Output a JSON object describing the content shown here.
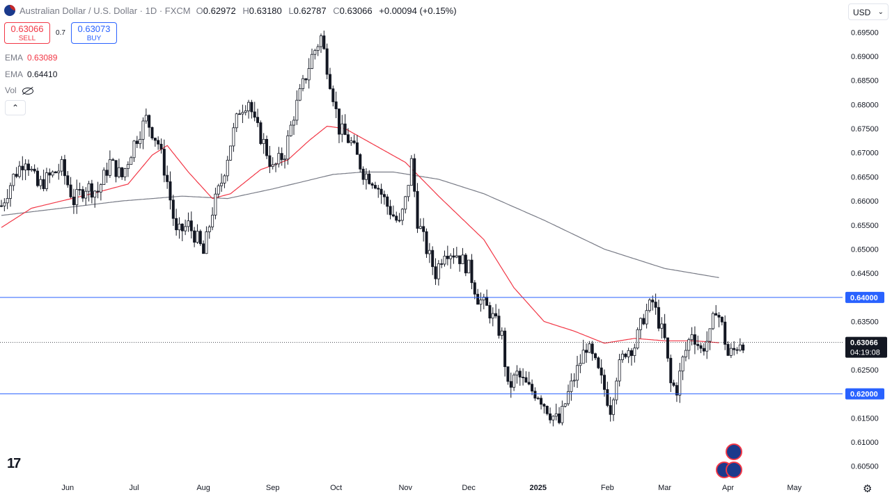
{
  "header": {
    "symbol_title": "Australian Dollar / U.S. Dollar · 1D · FXCM",
    "open_label": "O",
    "open": "0.62972",
    "high_label": "H",
    "high": "0.63180",
    "low_label": "L",
    "low": "0.62787",
    "close_label": "C",
    "close": "0.63066",
    "change": "+0.00094 (+0.15%)"
  },
  "trade": {
    "sell_price": "0.63066",
    "sell_label": "SELL",
    "spread": "0.7",
    "buy_price": "0.63073",
    "buy_label": "BUY"
  },
  "indicators": [
    {
      "name": "EMA",
      "value": "0.63089",
      "color": "#f23645"
    },
    {
      "name": "EMA",
      "value": "0.64410",
      "color": "#787b86"
    },
    {
      "name": "Vol"
    }
  ],
  "currency": "USD",
  "collapse_icon": "chevron-up-icon",
  "colors": {
    "up": "#ffffff",
    "down": "#131722",
    "ema_fast": "#f23645",
    "ema_slow": "#787b86",
    "hline": "#2962ff"
  },
  "chart_data": {
    "type": "candlestick",
    "title": "Australian Dollar / U.S. Dollar · 1D · FXCM",
    "ylim": [
      0.6025,
      0.6985
    ],
    "y_ticks": [
      "0.60500",
      "0.61000",
      "0.61500",
      "0.62000",
      "0.62500",
      "0.63000",
      "0.63500",
      "0.64000",
      "0.64500",
      "0.65000",
      "0.65500",
      "0.66000",
      "0.66500",
      "0.67000",
      "0.67500",
      "0.68000",
      "0.68500",
      "0.69000",
      "0.69500"
    ],
    "x_ticks": [
      {
        "label": "Jun",
        "index": 22
      },
      {
        "label": "Jul",
        "index": 44
      },
      {
        "label": "Aug",
        "index": 67
      },
      {
        "label": "Sep",
        "index": 90
      },
      {
        "label": "Oct",
        "index": 111
      },
      {
        "label": "Nov",
        "index": 134
      },
      {
        "label": "Dec",
        "index": 155
      },
      {
        "label": "2025",
        "index": 178
      },
      {
        "label": "Feb",
        "index": 201
      },
      {
        "label": "Mar",
        "index": 220
      },
      {
        "label": "Apr",
        "index": 241
      },
      {
        "label": "May",
        "index": 263
      }
    ],
    "x_count": 290,
    "horizontal_lines": [
      {
        "value": 0.64,
        "label": "0.64000"
      },
      {
        "value": 0.62,
        "label": "0.62000"
      }
    ],
    "last_price": {
      "value": 0.63066,
      "label": "0.63066",
      "countdown": "04:19:08"
    },
    "ema_fast": {
      "name": "EMA",
      "points": [
        [
          0,
          0.6545
        ],
        [
          10,
          0.6585
        ],
        [
          30,
          0.6615
        ],
        [
          42,
          0.6635
        ],
        [
          50,
          0.6695
        ],
        [
          55,
          0.6715
        ],
        [
          62,
          0.666
        ],
        [
          70,
          0.6605
        ],
        [
          76,
          0.6615
        ],
        [
          86,
          0.6665
        ],
        [
          95,
          0.6685
        ],
        [
          102,
          0.6725
        ],
        [
          108,
          0.6755
        ],
        [
          114,
          0.675
        ],
        [
          124,
          0.6715
        ],
        [
          134,
          0.668
        ],
        [
          145,
          0.661
        ],
        [
          160,
          0.652
        ],
        [
          170,
          0.642
        ],
        [
          180,
          0.635
        ],
        [
          190,
          0.633
        ],
        [
          200,
          0.6305
        ],
        [
          210,
          0.6315
        ],
        [
          220,
          0.631
        ],
        [
          230,
          0.631
        ],
        [
          238,
          0.6306
        ]
      ]
    },
    "ema_slow": {
      "name": "EMA",
      "points": [
        [
          0,
          0.657
        ],
        [
          20,
          0.6585
        ],
        [
          40,
          0.66
        ],
        [
          60,
          0.661
        ],
        [
          75,
          0.6605
        ],
        [
          90,
          0.6625
        ],
        [
          110,
          0.6655
        ],
        [
          120,
          0.666
        ],
        [
          130,
          0.666
        ],
        [
          145,
          0.6645
        ],
        [
          160,
          0.6615
        ],
        [
          180,
          0.656
        ],
        [
          200,
          0.65
        ],
        [
          220,
          0.646
        ],
        [
          238,
          0.6441
        ]
      ]
    },
    "ohlc_anchors": [
      [
        0,
        0.659
      ],
      [
        4,
        0.665
      ],
      [
        8,
        0.669
      ],
      [
        12,
        0.663
      ],
      [
        16,
        0.665
      ],
      [
        20,
        0.667
      ],
      [
        24,
        0.66
      ],
      [
        28,
        0.663
      ],
      [
        32,
        0.662
      ],
      [
        36,
        0.668
      ],
      [
        40,
        0.665
      ],
      [
        44,
        0.672
      ],
      [
        48,
        0.677
      ],
      [
        52,
        0.672
      ],
      [
        55,
        0.664
      ],
      [
        58,
        0.653
      ],
      [
        62,
        0.655
      ],
      [
        65,
        0.652
      ],
      [
        67,
        0.649
      ],
      [
        70,
        0.658
      ],
      [
        73,
        0.664
      ],
      [
        76,
        0.672
      ],
      [
        79,
        0.679
      ],
      [
        82,
        0.681
      ],
      [
        84,
        0.676
      ],
      [
        87,
        0.672
      ],
      [
        90,
        0.6665
      ],
      [
        94,
        0.67
      ],
      [
        97,
        0.678
      ],
      [
        100,
        0.684
      ],
      [
        103,
        0.69
      ],
      [
        106,
        0.694
      ],
      [
        108,
        0.688
      ],
      [
        110,
        0.682
      ],
      [
        112,
        0.675
      ],
      [
        116,
        0.672
      ],
      [
        120,
        0.666
      ],
      [
        124,
        0.664
      ],
      [
        128,
        0.659
      ],
      [
        132,
        0.655
      ],
      [
        134,
        0.66
      ],
      [
        136,
        0.668
      ],
      [
        138,
        0.656
      ],
      [
        141,
        0.65
      ],
      [
        144,
        0.645
      ],
      [
        147,
        0.65
      ],
      [
        151,
        0.649
      ],
      [
        155,
        0.646
      ],
      [
        158,
        0.64
      ],
      [
        162,
        0.637
      ],
      [
        166,
        0.632
      ],
      [
        168,
        0.621
      ],
      [
        171,
        0.624
      ],
      [
        175,
        0.621
      ],
      [
        178,
        0.62
      ],
      [
        182,
        0.616
      ],
      [
        185,
        0.614
      ],
      [
        188,
        0.62
      ],
      [
        191,
        0.625
      ],
      [
        194,
        0.63
      ],
      [
        197,
        0.626
      ],
      [
        200,
        0.621
      ],
      [
        202,
        0.617
      ],
      [
        204,
        0.624
      ],
      [
        207,
        0.629
      ],
      [
        210,
        0.63
      ],
      [
        213,
        0.636
      ],
      [
        216,
        0.639
      ],
      [
        218,
        0.635
      ],
      [
        220,
        0.631
      ],
      [
        222,
        0.622
      ],
      [
        224,
        0.621
      ],
      [
        226,
        0.627
      ],
      [
        229,
        0.633
      ],
      [
        232,
        0.629
      ],
      [
        235,
        0.632
      ],
      [
        237,
        0.638
      ],
      [
        239,
        0.634
      ],
      [
        241,
        0.628
      ],
      [
        243,
        0.629
      ],
      [
        245,
        0.631
      ],
      [
        246,
        0.6307
      ]
    ]
  }
}
